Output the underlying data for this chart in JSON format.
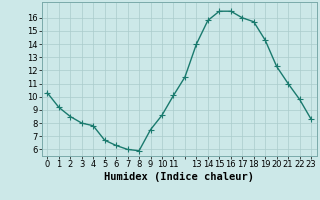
{
  "x": [
    0,
    1,
    2,
    3,
    4,
    5,
    6,
    7,
    8,
    9,
    10,
    11,
    12,
    13,
    14,
    15,
    16,
    17,
    18,
    19,
    20,
    21,
    22,
    23
  ],
  "y": [
    10.3,
    9.2,
    8.5,
    8.0,
    7.8,
    6.7,
    6.3,
    6.0,
    5.9,
    7.5,
    8.6,
    10.1,
    11.5,
    14.0,
    15.8,
    16.5,
    16.5,
    16.0,
    15.7,
    14.3,
    12.3,
    11.0,
    9.8,
    8.3
  ],
  "line_color": "#1a7a6e",
  "bg_color": "#cce8e8",
  "grid_color": "#aacccc",
  "xlabel": "Humidex (Indice chaleur)",
  "ylim": [
    5.5,
    17.2
  ],
  "xlim": [
    -0.5,
    23.5
  ],
  "yticks": [
    6,
    7,
    8,
    9,
    10,
    11,
    12,
    13,
    14,
    15,
    16
  ],
  "tick_label_fontsize": 6.0,
  "xlabel_fontsize": 7.5,
  "line_width": 1.0,
  "marker_size": 2.2
}
